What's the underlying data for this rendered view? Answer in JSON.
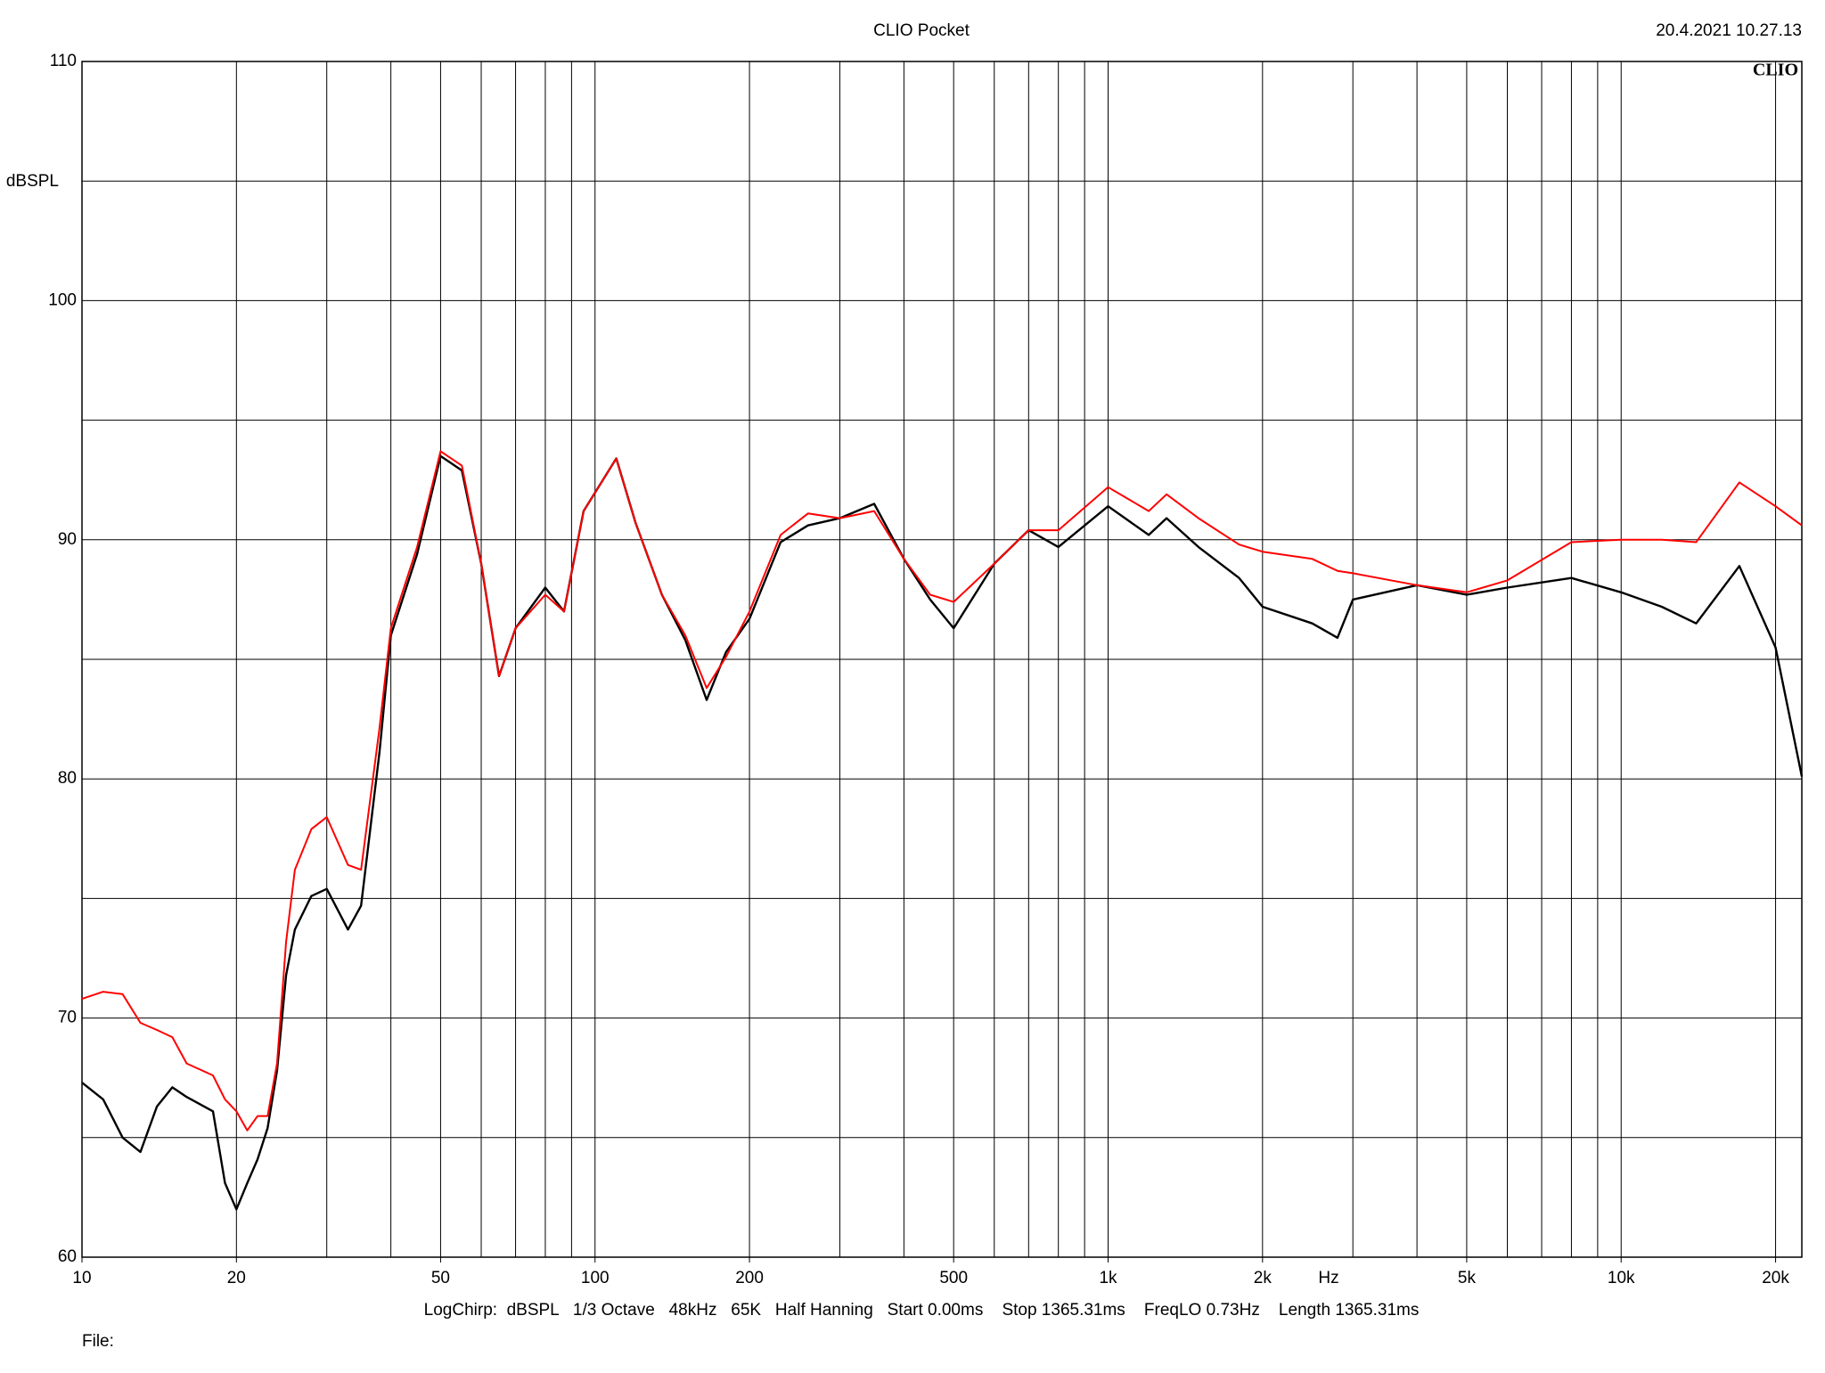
{
  "chart_data": {
    "type": "line",
    "title": "CLIO Pocket",
    "timestamp": "20.4.2021 10.27.13",
    "logo": "CLIO",
    "x_label": "Hz",
    "y_label": "dBSPL",
    "footer": "LogChirp:  dBSPL   1/3 Octave   48kHz   65K   Half Hanning   Start 0.00ms    Stop 1365.31ms    FreqLO 0.73Hz    Length 1365.31ms",
    "file_label": "File:",
    "xscale": "log",
    "xlim": [
      10,
      22500
    ],
    "ylim": [
      60,
      110
    ],
    "xticks": [
      10,
      20,
      50,
      100,
      200,
      500,
      {
        "value": 1000,
        "label": "1k"
      },
      {
        "value": 2000,
        "label": "2k"
      },
      {
        "value": 5000,
        "label": "5k"
      },
      {
        "value": 10000,
        "label": "10k"
      },
      {
        "value": 20000,
        "label": "20k"
      }
    ],
    "xgrid": [
      10,
      20,
      30,
      40,
      50,
      60,
      70,
      80,
      90,
      100,
      200,
      300,
      400,
      500,
      600,
      700,
      800,
      900,
      1000,
      2000,
      3000,
      4000,
      5000,
      6000,
      7000,
      8000,
      9000,
      10000,
      20000
    ],
    "yticks": [
      60,
      70,
      80,
      90,
      100,
      110
    ],
    "yminor": [
      65,
      75,
      85,
      95,
      105
    ],
    "grid": true,
    "x": [
      10,
      11,
      12,
      13,
      14,
      15,
      16,
      18,
      19,
      20,
      21,
      22,
      23,
      24,
      25,
      26,
      28,
      30,
      33,
      35,
      38,
      40,
      45,
      50,
      55,
      60,
      65,
      70,
      80,
      87,
      95,
      110,
      120,
      135,
      150,
      165,
      180,
      200,
      230,
      260,
      300,
      350,
      400,
      450,
      500,
      600,
      700,
      800,
      1000,
      1200,
      1300,
      1500,
      1800,
      2000,
      2500,
      2800,
      3000,
      4000,
      5000,
      6000,
      8000,
      10000,
      12000,
      14000,
      17000,
      20000,
      22500
    ],
    "series": [
      {
        "color": "#000000",
        "values": [
          67.3,
          66.6,
          65.0,
          64.4,
          66.3,
          67.1,
          66.7,
          66.1,
          63.1,
          62.0,
          63.1,
          64.1,
          65.4,
          67.8,
          71.8,
          73.7,
          75.1,
          75.4,
          73.7,
          74.7,
          81.1,
          86.0,
          89.4,
          93.5,
          92.9,
          89.0,
          84.3,
          86.3,
          88.0,
          87.0,
          91.2,
          93.4,
          90.7,
          87.7,
          85.8,
          83.3,
          85.3,
          86.7,
          89.9,
          90.6,
          90.9,
          91.5,
          89.2,
          87.5,
          86.3,
          89.0,
          90.4,
          89.7,
          91.4,
          90.2,
          90.9,
          89.7,
          88.4,
          87.2,
          86.5,
          85.9,
          87.5,
          88.1,
          87.7,
          88.0,
          88.4,
          87.8,
          87.2,
          86.5,
          88.9,
          85.5,
          80.1
        ]
      },
      {
        "color": "#ff0000",
        "values": [
          70.8,
          71.1,
          71.0,
          69.8,
          69.5,
          69.2,
          68.1,
          67.6,
          66.6,
          66.1,
          65.3,
          65.9,
          65.9,
          68.1,
          73.2,
          76.2,
          77.9,
          78.4,
          76.4,
          76.2,
          82.1,
          86.3,
          89.7,
          93.7,
          93.1,
          89.0,
          84.3,
          86.3,
          87.7,
          87.0,
          91.2,
          93.4,
          90.7,
          87.7,
          86.0,
          83.8,
          85.1,
          87.0,
          90.2,
          91.1,
          90.9,
          91.2,
          89.2,
          87.7,
          87.4,
          89.0,
          90.4,
          90.4,
          92.2,
          91.2,
          91.9,
          90.9,
          89.8,
          89.5,
          89.2,
          88.7,
          88.6,
          88.1,
          87.8,
          88.3,
          89.9,
          90.0,
          90.0,
          89.9,
          92.4,
          91.4,
          90.6
        ]
      }
    ]
  }
}
